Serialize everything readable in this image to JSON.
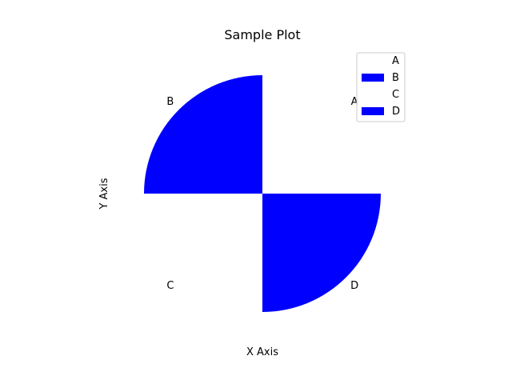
{
  "chart_data": {
    "type": "pie",
    "title": "Sample Plot",
    "xlabel": "X Axis",
    "ylabel": "Y Axis",
    "labels": [
      "A",
      "B",
      "C",
      "D"
    ],
    "values": [
      25,
      25,
      25,
      25
    ],
    "colors": [
      "#ffffff",
      "#0000ff",
      "#ffffff",
      "#0000ff"
    ],
    "start_angle_deg": 0,
    "direction": "counterclockwise",
    "legend": {
      "placement": "top-right",
      "entries": [
        "A",
        "B",
        "C",
        "D"
      ]
    },
    "grid": false
  }
}
